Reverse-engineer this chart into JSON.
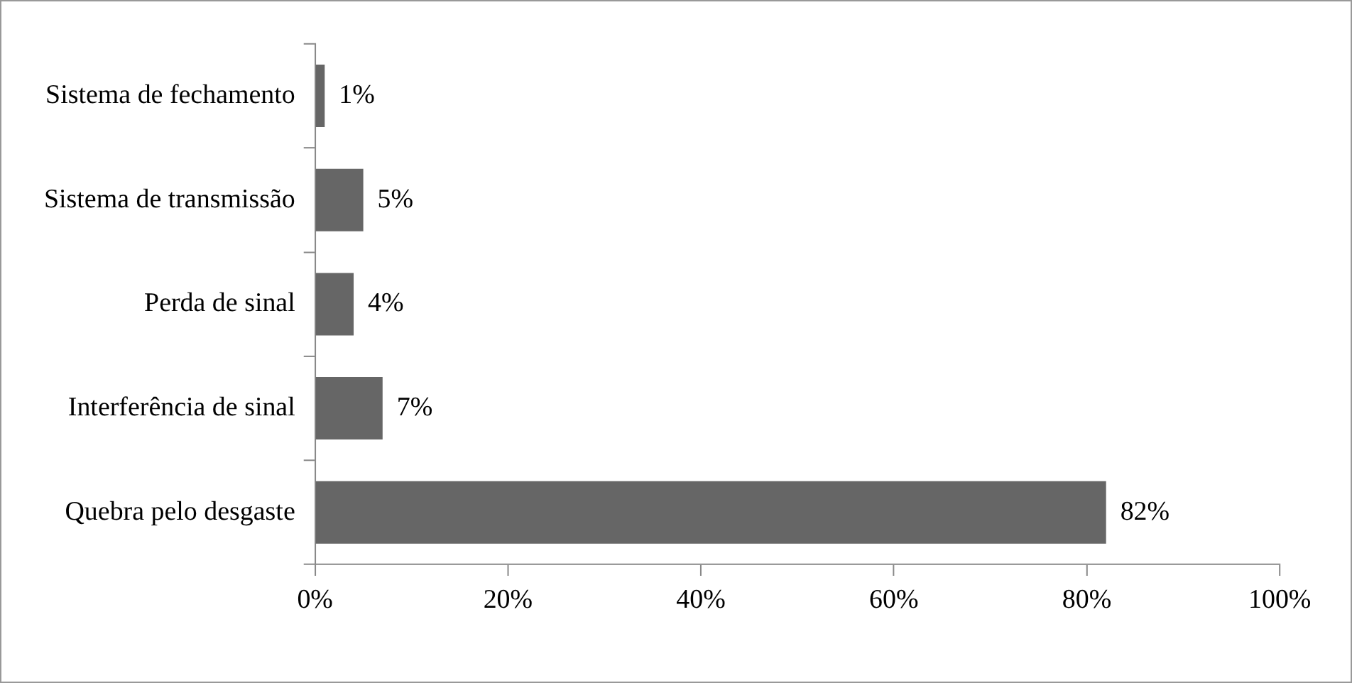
{
  "chart_data": {
    "type": "bar",
    "orientation": "horizontal",
    "categories": [
      "Sistema de fechamento",
      "Sistema de transmissão",
      "Perda de sinal",
      "Interferência de sinal",
      "Quebra pelo desgaste"
    ],
    "values": [
      1,
      5,
      4,
      7,
      82
    ],
    "value_labels": [
      "1%",
      "5%",
      "4%",
      "7%",
      "82%"
    ],
    "color": "#666666",
    "xlim": [
      0,
      100
    ],
    "xticks": [
      {
        "value": 0,
        "label": "0%"
      },
      {
        "value": 20,
        "label": "20%"
      },
      {
        "value": 40,
        "label": "40%"
      },
      {
        "value": 60,
        "label": "60%"
      },
      {
        "value": 80,
        "label": "80%"
      },
      {
        "value": 100,
        "label": "100%"
      }
    ],
    "grid": false,
    "legend": false
  }
}
